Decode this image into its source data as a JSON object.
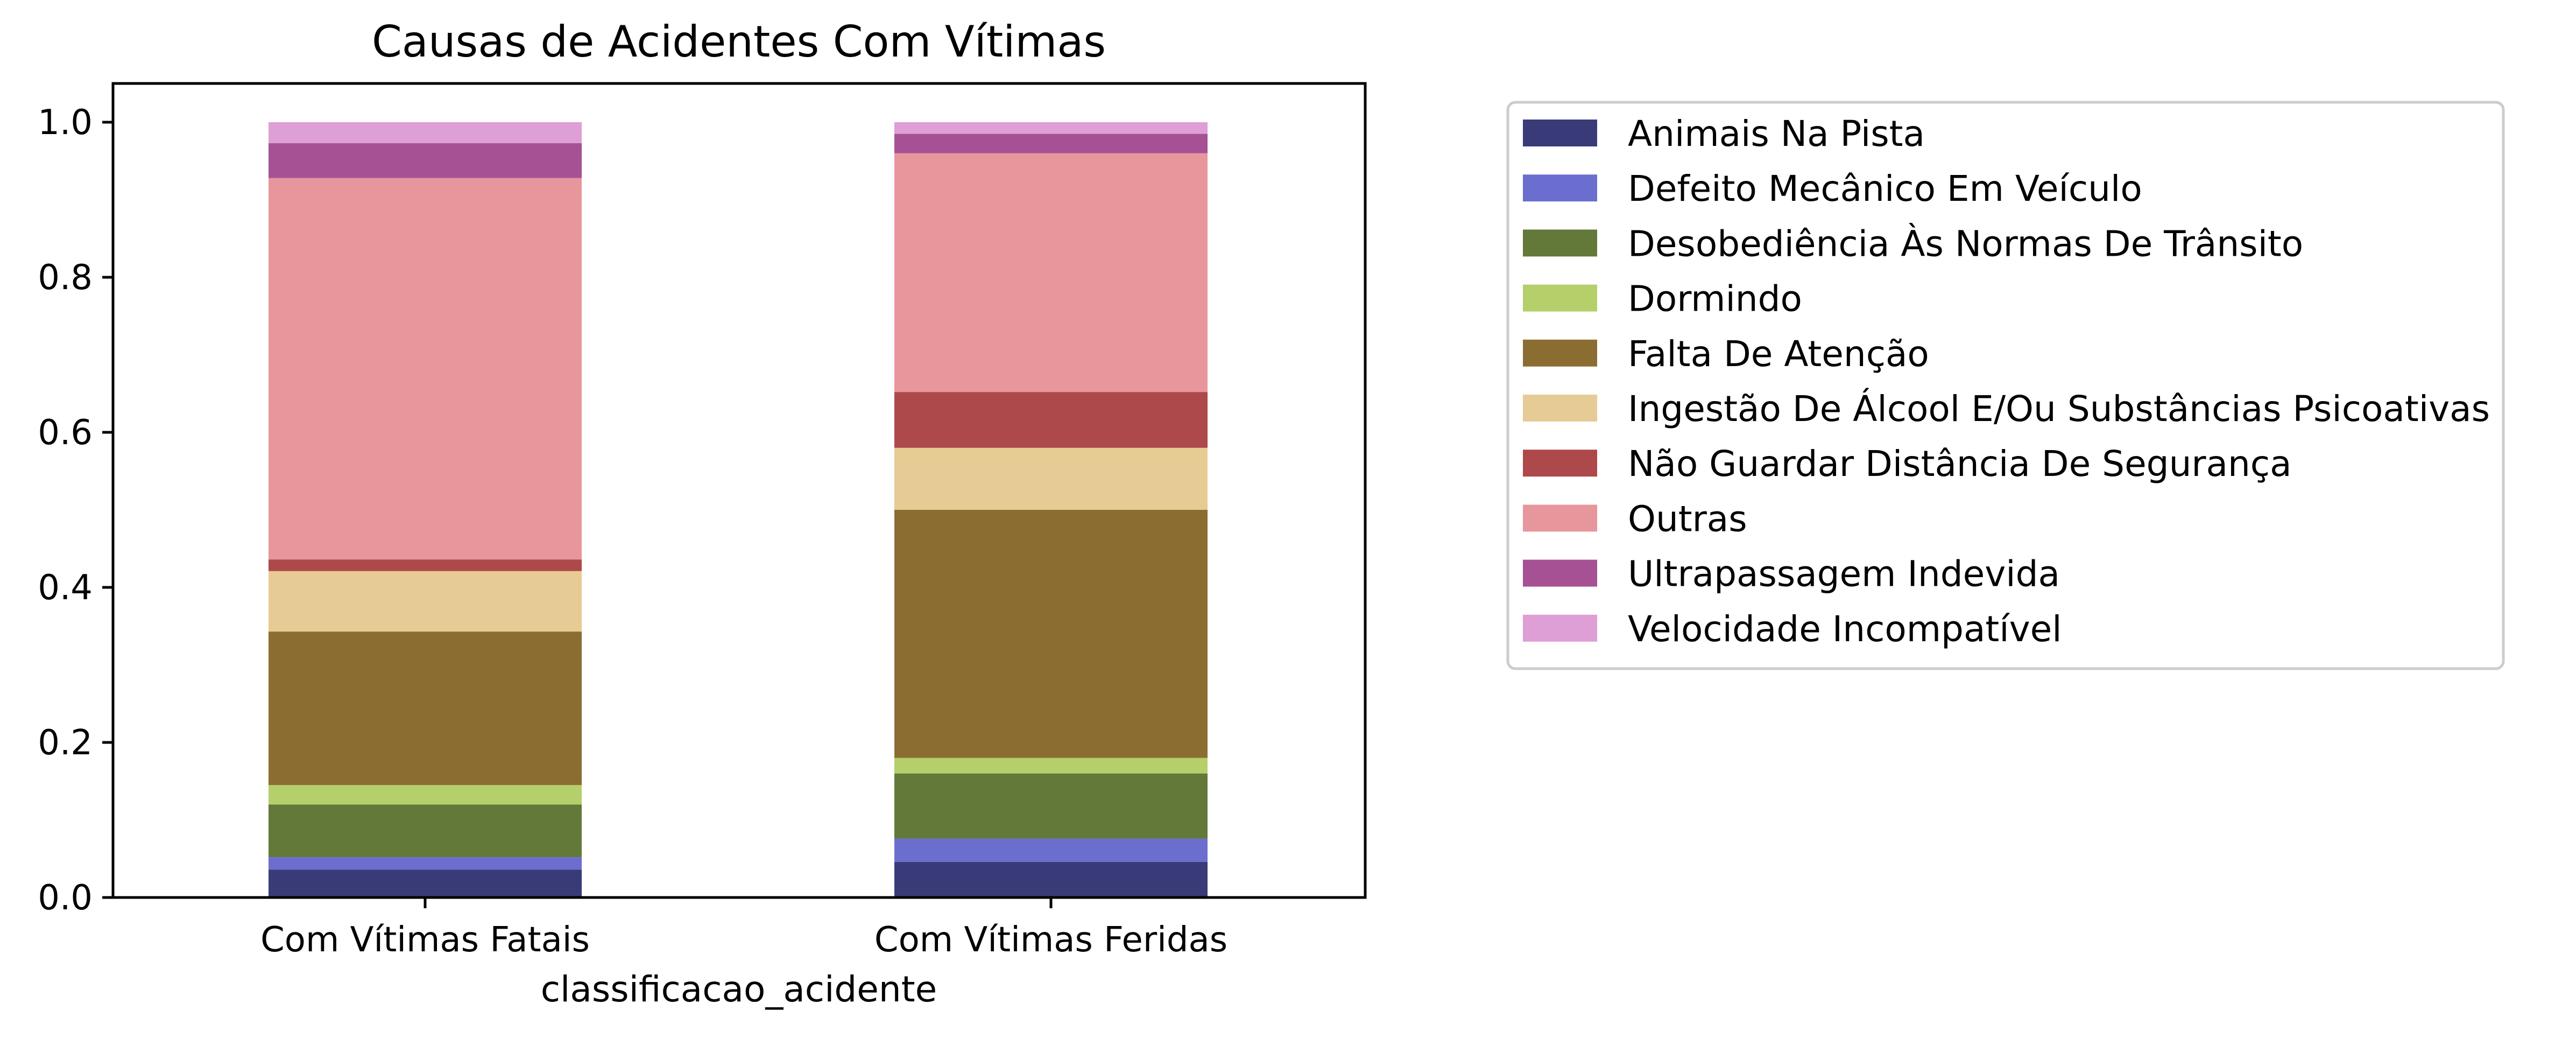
{
  "chart_data": {
    "type": "bar",
    "stacked": true,
    "title": "Causas de Acidentes Com Vítimas",
    "xlabel": "classificacao_acidente",
    "ylabel": "",
    "ylim": [
      0,
      1.05
    ],
    "yticks": [
      "0.0",
      "0.2",
      "0.4",
      "0.6",
      "0.8",
      "1.0"
    ],
    "categories": [
      "Com Vítimas Fatais",
      "Com Vítimas Feridas"
    ],
    "series": [
      {
        "name": "Animais Na Pista",
        "color": "#393b79",
        "values": [
          0.036,
          0.046
        ]
      },
      {
        "name": "Defeito Mecânico Em Veículo",
        "color": "#6b6ecf",
        "values": [
          0.016,
          0.03
        ]
      },
      {
        "name": "Desobediência Às Normas De Trânsito",
        "color": "#637939",
        "values": [
          0.068,
          0.084
        ]
      },
      {
        "name": "Dormindo",
        "color": "#b5cf6b",
        "values": [
          0.025,
          0.02
        ]
      },
      {
        "name": "Falta De Atenção",
        "color": "#8c6d31",
        "values": [
          0.198,
          0.32
        ]
      },
      {
        "name": "Ingestão De Álcool E/Ou Substâncias Psicoativas",
        "color": "#e7cb94",
        "values": [
          0.078,
          0.08
        ]
      },
      {
        "name": "Não Guardar Distância De Segurança",
        "color": "#ad494a",
        "values": [
          0.015,
          0.072
        ]
      },
      {
        "name": "Outras",
        "color": "#e7969c",
        "values": [
          0.492,
          0.308
        ]
      },
      {
        "name": "Ultrapassagem Indevida",
        "color": "#a55194",
        "values": [
          0.045,
          0.025
        ]
      },
      {
        "name": "Velocidade Incompatível",
        "color": "#de9ed6",
        "values": [
          0.027,
          0.015
        ]
      }
    ],
    "legend_position": "outside-right",
    "grid": false
  }
}
